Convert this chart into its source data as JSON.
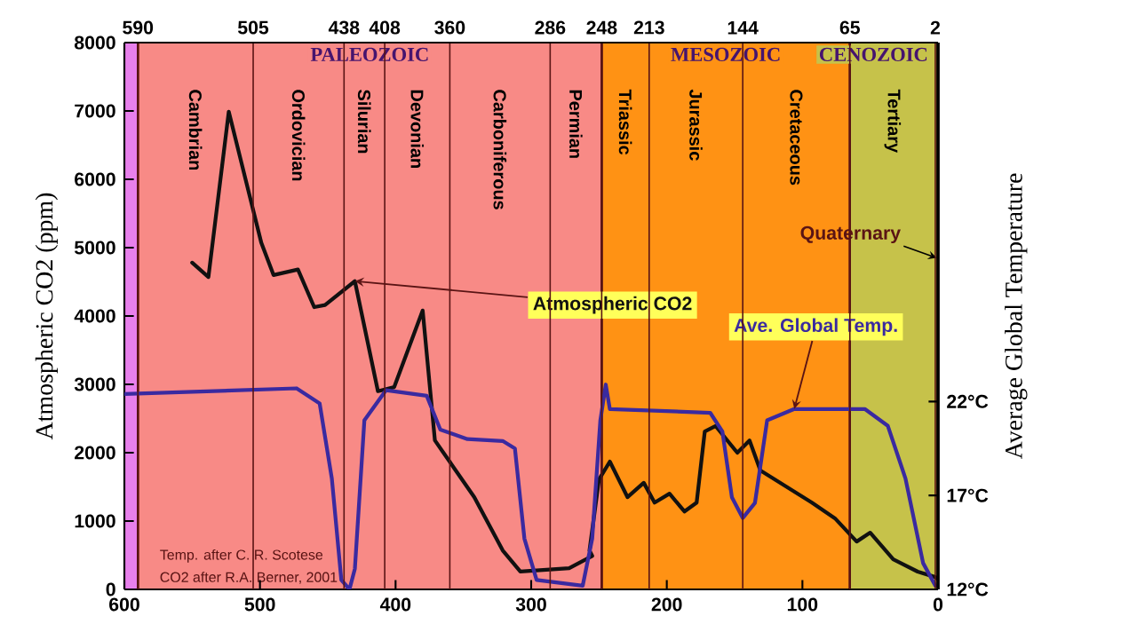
{
  "chart_data": {
    "type": "line",
    "xlabel": null,
    "ylabel": "Atmospheric CO2 (ppm)",
    "y2label": "Average Global Temperature",
    "xlim": [
      600,
      0
    ],
    "xticks": [
      600,
      500,
      400,
      300,
      200,
      100,
      0
    ],
    "x2lim": [
      600,
      0
    ],
    "x2ticks": [
      590,
      505,
      438,
      408,
      360,
      286,
      248,
      213,
      144,
      65,
      2
    ],
    "ylim": [
      0,
      8000
    ],
    "yticks": [
      0,
      1000,
      2000,
      3000,
      4000,
      5000,
      6000,
      7000,
      8000
    ],
    "y2lim": [
      12,
      41.1
    ],
    "y2ticks": [
      {
        "value": 12,
        "label": "12°C"
      },
      {
        "value": 17,
        "label": "17°C"
      },
      {
        "value": 22,
        "label": "22°C"
      }
    ],
    "grid": "x",
    "legend": false,
    "marker": "none",
    "line_style": "solid",
    "series": [
      {
        "name": "Atmospheric CO2",
        "color": "#111111",
        "x": [
          550,
          538,
          523,
          499,
          490,
          472,
          460,
          452,
          430,
          413,
          401,
          380,
          371,
          342,
          321,
          308,
          272,
          255,
          257,
          250,
          242,
          229,
          217,
          209,
          198,
          187,
          178,
          172,
          164,
          148,
          139,
          131,
          93,
          76,
          60,
          50,
          33,
          15,
          2,
          0
        ],
        "values": [
          4780,
          4570,
          6990,
          5070,
          4600,
          4680,
          4130,
          4160,
          4510,
          2900,
          2960,
          4080,
          2180,
          1350,
          570,
          260,
          310,
          490,
          570,
          1610,
          1870,
          1350,
          1560,
          1270,
          1400,
          1140,
          1270,
          2310,
          2390,
          2000,
          2180,
          1740,
          1270,
          1040,
          700,
          830,
          440,
          260,
          180,
          150
        ]
      },
      {
        "name": "Ave. Global Temp.",
        "color": "#3a2aa0",
        "axis": "y2",
        "x": [
          600,
          473,
          456,
          447,
          440,
          434,
          430,
          423,
          407,
          377,
          367,
          347,
          321,
          312,
          305,
          296,
          262,
          255,
          249,
          245,
          242,
          168,
          159,
          152,
          144,
          135,
          126,
          106,
          54,
          37,
          24,
          11,
          2
        ],
        "values": [
          22.4,
          22.7,
          21.9,
          17.9,
          12.5,
          12.0,
          13.1,
          21.0,
          22.6,
          22.3,
          20.5,
          20.0,
          19.9,
          19.5,
          14.7,
          12.5,
          12.2,
          14.7,
          21.0,
          22.9,
          21.6,
          21.4,
          20.4,
          16.9,
          15.8,
          16.6,
          21.0,
          21.6,
          21.6,
          20.7,
          17.9,
          13.4,
          12.2
        ]
      }
    ],
    "bands": [
      {
        "axis": "x",
        "from": 600,
        "to": 590,
        "color": "#e880ec"
      },
      {
        "axis": "x",
        "from": 590,
        "to": 248,
        "label": "PALEOZOIC",
        "color": "#f88a86"
      },
      {
        "axis": "x",
        "from": 248,
        "to": 65,
        "label": "MESOZOIC",
        "color": "#ff9214"
      },
      {
        "axis": "x",
        "from": 65,
        "to": 0,
        "label": "CENOZOIC",
        "color": "#c6c24a"
      }
    ],
    "annotations": [
      "Cambrian",
      "Ordovician",
      "Silurian",
      "Devonian",
      "Carboniferous",
      "Permian",
      "Triassic",
      "Jurassic",
      "Cretaceous",
      "Tertiary",
      {
        "text": "Quaternary",
        "x": 1,
        "y": 4850
      },
      "Temp. after C. R. Scotese",
      "CO2 after R.A. Berner, 2001"
    ]
  }
}
